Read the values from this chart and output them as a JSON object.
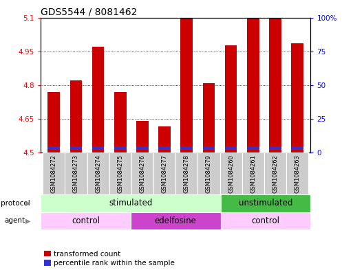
{
  "title": "GDS5544 / 8081462",
  "samples": [
    "GSM1084272",
    "GSM1084273",
    "GSM1084274",
    "GSM1084275",
    "GSM1084276",
    "GSM1084277",
    "GSM1084278",
    "GSM1084279",
    "GSM1084260",
    "GSM1084261",
    "GSM1084262",
    "GSM1084263"
  ],
  "transformed_count": [
    4.77,
    4.82,
    4.97,
    4.77,
    4.64,
    4.615,
    5.1,
    4.81,
    4.975,
    5.1,
    5.1,
    4.985
  ],
  "percentile_bottom": [
    4.513,
    4.513,
    4.513,
    4.513,
    4.513,
    4.513,
    4.513,
    4.513,
    4.513,
    4.513,
    4.513,
    4.513
  ],
  "percentile_top": [
    4.527,
    4.527,
    4.527,
    4.527,
    4.527,
    4.527,
    4.527,
    4.527,
    4.527,
    4.527,
    4.527,
    4.527
  ],
  "ylim": [
    4.5,
    5.1
  ],
  "yticks_left": [
    4.5,
    4.65,
    4.8,
    4.95,
    5.1
  ],
  "yticks_right": [
    0,
    25,
    50,
    75,
    100
  ],
  "bar_color": "#cc0000",
  "blue_color": "#3333cc",
  "bar_bottom": 4.5,
  "protocol_labels": [
    "stimulated",
    "unstimulated"
  ],
  "protocol_color_stim": "#ccffcc",
  "protocol_color_unstim": "#44bb44",
  "agent_labels": [
    "control",
    "edelfosine",
    "control"
  ],
  "agent_color_control": "#ffccff",
  "agent_color_edelfosine": "#cc44cc",
  "legend_red_label": "transformed count",
  "legend_blue_label": "percentile rank within the sample",
  "bg_color": "#ffffff",
  "title_fontsize": 10,
  "tick_fontsize": 7.5,
  "label_fontsize": 8.5
}
